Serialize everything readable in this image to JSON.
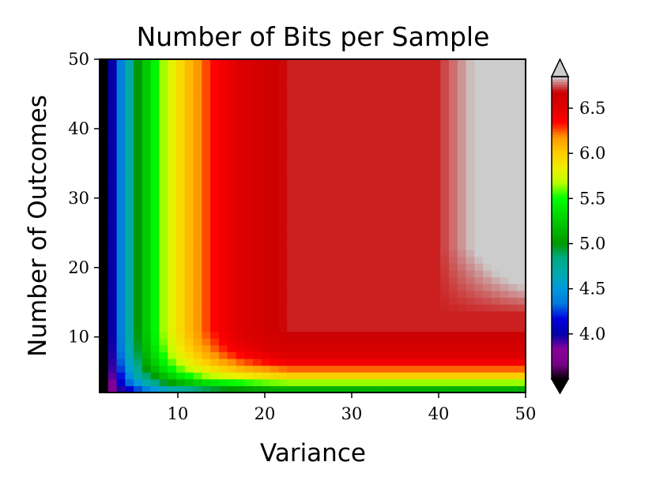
{
  "chart_data": {
    "type": "heatmap",
    "title": "Number of Bits per Sample",
    "xlabel": "Variance",
    "ylabel": "Number of Outcomes",
    "xlim": [
      1,
      50
    ],
    "ylim": [
      2,
      50
    ],
    "x_ticks": [
      {
        "value": 10,
        "label": "10"
      },
      {
        "value": 20,
        "label": "20"
      },
      {
        "value": 30,
        "label": "30"
      },
      {
        "value": 40,
        "label": "40"
      },
      {
        "value": 50,
        "label": "50"
      }
    ],
    "y_ticks": [
      {
        "value": 10,
        "label": "10"
      },
      {
        "value": 20,
        "label": "20"
      },
      {
        "value": 30,
        "label": "30"
      },
      {
        "value": 40,
        "label": "40"
      },
      {
        "value": 50,
        "label": "50"
      }
    ],
    "grid": false,
    "x": [
      1,
      2,
      3,
      4,
      5,
      6,
      7,
      8,
      9,
      10,
      11,
      12,
      13,
      14,
      15,
      16,
      17,
      18,
      19,
      20,
      21,
      22,
      23,
      24,
      25,
      26,
      27,
      28,
      29,
      30,
      31,
      32,
      33,
      34,
      35,
      36,
      37,
      38,
      39,
      40,
      41,
      42,
      43,
      44,
      45,
      46,
      47,
      48,
      49,
      50
    ],
    "y": [
      2,
      3,
      4,
      5,
      6,
      7,
      8,
      9,
      10,
      11,
      12,
      13,
      14,
      15,
      16,
      17,
      18,
      19,
      20,
      21,
      22,
      23,
      24,
      25,
      26,
      27,
      28,
      29,
      30,
      31,
      32,
      33,
      34,
      35,
      36,
      37,
      38,
      39,
      40,
      41,
      42,
      43,
      44,
      45,
      46,
      47,
      48,
      49,
      50
    ],
    "values_description": "bits per sample as a function of variance (x) and number of outcomes (y)",
    "colorbar": {
      "colormap": "nipy_spectral",
      "range": [
        3.5,
        6.85
      ],
      "extend": "both",
      "ticks": [
        {
          "value": 4.0,
          "label": "4.0"
        },
        {
          "value": 4.5,
          "label": "4.5"
        },
        {
          "value": 5.0,
          "label": "5.0"
        },
        {
          "value": 5.5,
          "label": "5.5"
        },
        {
          "value": 6.0,
          "label": "6.0"
        },
        {
          "value": 6.5,
          "label": "6.5"
        }
      ]
    }
  }
}
